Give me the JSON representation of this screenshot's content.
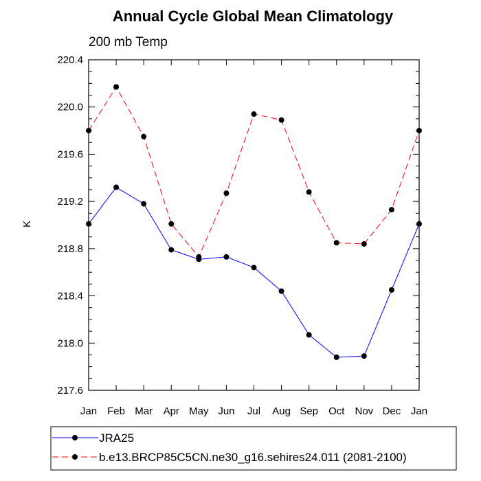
{
  "chart_data": {
    "type": "line",
    "title": "Annual Cycle Global Mean Climatology",
    "subtitle": "200 mb Temp",
    "xlabel": "",
    "ylabel": "K",
    "categories": [
      "Jan",
      "Feb",
      "Mar",
      "Apr",
      "May",
      "Jun",
      "Jul",
      "Aug",
      "Sep",
      "Oct",
      "Nov",
      "Dec",
      "Jan"
    ],
    "ylim": [
      217.6,
      220.4
    ],
    "yticks": [
      217.6,
      218.0,
      218.4,
      218.8,
      219.2,
      219.6,
      220.0,
      220.4
    ],
    "ytick_labels": [
      "217.6",
      "218.0",
      "218.4",
      "218.8",
      "219.2",
      "219.6",
      "220.0",
      "220.4"
    ],
    "series": [
      {
        "name": "JRA25",
        "color": "#0000ff",
        "dash": "solid",
        "values": [
          219.01,
          219.32,
          219.18,
          218.79,
          218.71,
          218.73,
          218.64,
          218.44,
          218.07,
          217.88,
          217.89,
          218.45,
          219.01
        ]
      },
      {
        "name": "b.e13.BRCP85C5CN.ne30_g16.sehires24.011 (2081-2100)",
        "color": "#ff0000",
        "dash": "dashed",
        "values": [
          219.8,
          220.17,
          219.75,
          219.01,
          218.73,
          219.27,
          219.94,
          219.89,
          219.28,
          218.85,
          218.84,
          219.13,
          219.8
        ]
      }
    ],
    "grid": false,
    "legend_position": "bottom"
  }
}
